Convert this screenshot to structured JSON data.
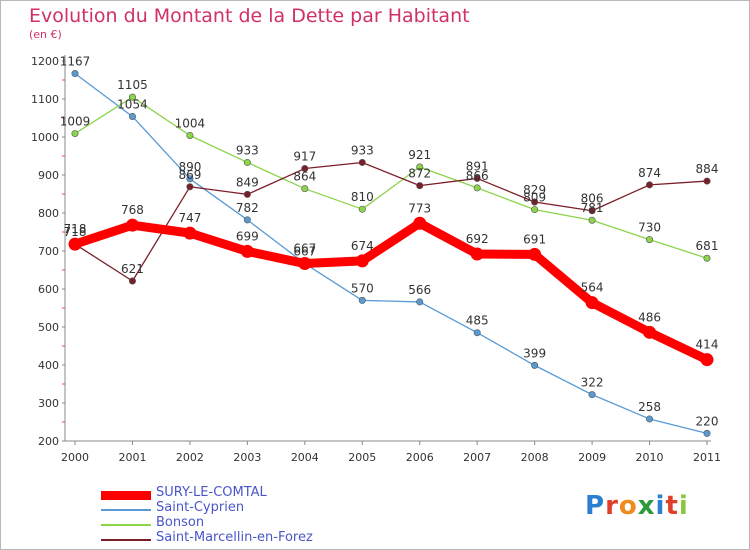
{
  "title": "Evolution du Montant de la Dette par Habitant",
  "unit": "(en €)",
  "logo": "Proxiti",
  "chart_data": {
    "type": "line",
    "title": "Evolution du Montant de la Dette par Habitant",
    "subtitle": "(en €)",
    "xlabel": "",
    "ylabel": "",
    "x": [
      "2000",
      "2001",
      "2002",
      "2003",
      "2004",
      "2005",
      "2006",
      "2007",
      "2008",
      "2009",
      "2010",
      "2011"
    ],
    "ylim": [
      200,
      1200
    ],
    "yticks": [
      200,
      300,
      400,
      500,
      600,
      700,
      800,
      900,
      1000,
      1100,
      1200
    ],
    "grid": false,
    "legend_position": "bottom-left",
    "series": [
      {
        "name": "SURY-LE-COMTAL",
        "color": "#ff0000",
        "values": [
          718,
          768,
          747,
          699,
          667,
          674,
          773,
          692,
          691,
          564,
          486,
          414
        ]
      },
      {
        "name": "Saint-Cyprien",
        "color": "#5a9ad4",
        "values": [
          1167,
          1054,
          890,
          782,
          667,
          570,
          566,
          485,
          399,
          322,
          258,
          220
        ]
      },
      {
        "name": "Bonson",
        "color": "#8cd44a",
        "values": [
          1009,
          1105,
          1004,
          933,
          864,
          810,
          921,
          866,
          809,
          781,
          730,
          681
        ]
      },
      {
        "name": "Saint-Marcellin-en-Forez",
        "color": "#7a1f2a",
        "values": [
          718,
          621,
          869,
          849,
          917,
          933,
          872,
          891,
          829,
          806,
          874,
          884
        ]
      }
    ]
  },
  "legend": [
    {
      "label": "SURY-LE-COMTAL",
      "color": "#ff0000"
    },
    {
      "label": "Saint-Cyprien",
      "color": "#5a9ad4"
    },
    {
      "label": "Bonson",
      "color": "#8cd44a"
    },
    {
      "label": "Saint-Marcellin-en-Forez",
      "color": "#7a1f2a"
    }
  ]
}
